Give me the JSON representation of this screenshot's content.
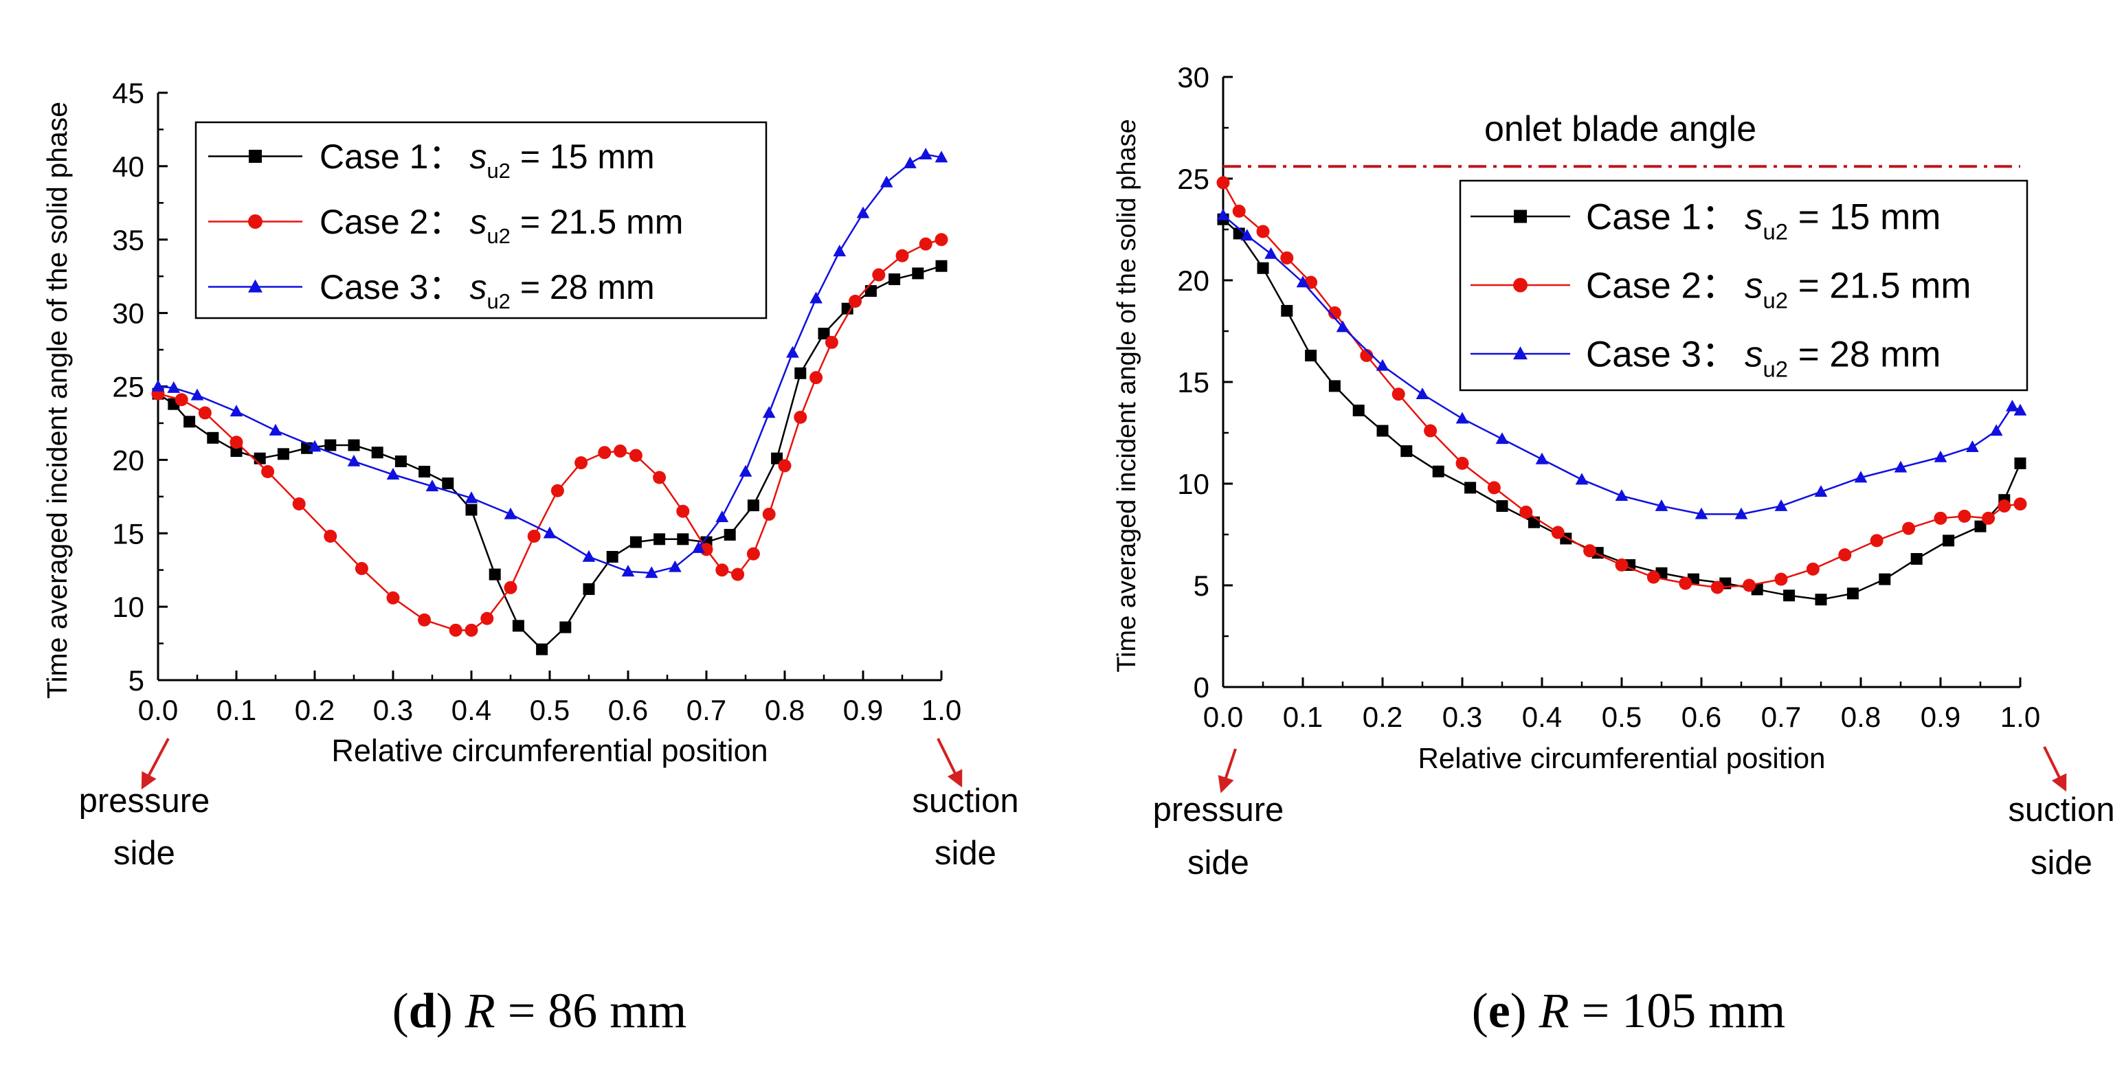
{
  "colors": {
    "case1": "#000000",
    "case2": "#e8120c",
    "case3": "#1010e0",
    "arrow": "#d42020",
    "blade_line": "#c0141c"
  },
  "chart_data": [
    {
      "type": "line",
      "panel_label": "d",
      "caption_var": "R",
      "caption_value": "= 86 mm",
      "xlabel": "Relative circumferential position",
      "ylabel": "Time averaged incident angle of the solid phase",
      "xlim": [
        0.0,
        1.0
      ],
      "ylim": [
        5,
        45
      ],
      "xticks": [
        "0.0",
        "0.1",
        "0.2",
        "0.3",
        "0.4",
        "0.5",
        "0.6",
        "0.7",
        "0.8",
        "0.9",
        "1.0"
      ],
      "yticks": [
        "5",
        "10",
        "15",
        "20",
        "25",
        "30",
        "35",
        "40",
        "45"
      ],
      "legend_position": "top-left",
      "annotations": {
        "left_line1": "pressure",
        "left_line2": "side",
        "right_line1": "suction",
        "right_line2": "side"
      },
      "series": [
        {
          "name": "Case 1：",
          "s_var": "s",
          "s_sub": "u2",
          "s_value": "= 15 mm",
          "marker": "square",
          "x": [
            0.0,
            0.02,
            0.04,
            0.07,
            0.1,
            0.13,
            0.16,
            0.19,
            0.22,
            0.25,
            0.28,
            0.31,
            0.34,
            0.37,
            0.4,
            0.43,
            0.46,
            0.49,
            0.52,
            0.55,
            0.58,
            0.61,
            0.64,
            0.67,
            0.7,
            0.73,
            0.76,
            0.79,
            0.82,
            0.85,
            0.88,
            0.91,
            0.94,
            0.97,
            1.0
          ],
          "y": [
            24.5,
            23.8,
            22.6,
            21.5,
            20.6,
            20.1,
            20.4,
            20.8,
            21.0,
            21.0,
            20.5,
            19.9,
            19.2,
            18.4,
            16.6,
            12.2,
            8.7,
            7.1,
            8.6,
            11.2,
            13.4,
            14.4,
            14.6,
            14.6,
            14.4,
            14.9,
            16.9,
            20.1,
            25.9,
            28.6,
            30.3,
            31.5,
            32.3,
            32.7,
            33.2
          ]
        },
        {
          "name": "Case 2：",
          "s_var": "s",
          "s_sub": "u2",
          "s_value": "= 21.5 mm",
          "marker": "circle",
          "x": [
            0.0,
            0.03,
            0.06,
            0.1,
            0.14,
            0.18,
            0.22,
            0.26,
            0.3,
            0.34,
            0.38,
            0.4,
            0.42,
            0.45,
            0.48,
            0.51,
            0.54,
            0.57,
            0.59,
            0.61,
            0.64,
            0.67,
            0.7,
            0.72,
            0.74,
            0.76,
            0.78,
            0.8,
            0.82,
            0.84,
            0.86,
            0.89,
            0.92,
            0.95,
            0.98,
            1.0
          ],
          "y": [
            24.5,
            24.1,
            23.2,
            21.2,
            19.2,
            17.0,
            14.8,
            12.6,
            10.6,
            9.1,
            8.4,
            8.4,
            9.2,
            11.3,
            14.8,
            17.9,
            19.8,
            20.5,
            20.6,
            20.3,
            18.8,
            16.5,
            13.9,
            12.5,
            12.2,
            13.6,
            16.3,
            19.6,
            22.9,
            25.6,
            28.0,
            30.8,
            32.6,
            33.9,
            34.7,
            35.0
          ]
        },
        {
          "name": "Case 3：",
          "s_var": "s",
          "s_sub": "u2",
          "s_value": "= 28 mm",
          "marker": "triangle",
          "x": [
            0.0,
            0.02,
            0.05,
            0.1,
            0.15,
            0.2,
            0.25,
            0.3,
            0.35,
            0.4,
            0.45,
            0.5,
            0.55,
            0.6,
            0.63,
            0.66,
            0.69,
            0.72,
            0.75,
            0.78,
            0.81,
            0.84,
            0.87,
            0.9,
            0.93,
            0.96,
            0.98,
            1.0
          ],
          "y": [
            25.0,
            24.9,
            24.4,
            23.3,
            22.0,
            20.9,
            19.9,
            19.0,
            18.2,
            17.4,
            16.3,
            15.0,
            13.4,
            12.4,
            12.3,
            12.7,
            14.0,
            16.1,
            19.2,
            23.2,
            27.3,
            31.0,
            34.2,
            36.8,
            38.9,
            40.2,
            40.8,
            40.6
          ]
        }
      ]
    },
    {
      "type": "line",
      "panel_label": "e",
      "caption_var": "R",
      "caption_value": "= 105 mm",
      "xlabel": "Relative circumferential position",
      "ylabel": "Time averaged incident angle of the solid phase",
      "xlim": [
        0.0,
        1.0
      ],
      "ylim": [
        0,
        30
      ],
      "xticks": [
        "0.0",
        "0.1",
        "0.2",
        "0.3",
        "0.4",
        "0.5",
        "0.6",
        "0.7",
        "0.8",
        "0.9",
        "1.0"
      ],
      "yticks": [
        "0",
        "5",
        "10",
        "15",
        "20",
        "25",
        "30"
      ],
      "legend_position": "top-right",
      "reference_line": {
        "label": "onlet blade angle",
        "y": 25.6
      },
      "annotations": {
        "left_line1": "pressure",
        "left_line2": "side",
        "right_line1": "suction",
        "right_line2": "side"
      },
      "series": [
        {
          "name": "Case 1：",
          "s_var": "s",
          "s_sub": "u2",
          "s_value": "= 15 mm",
          "marker": "square",
          "x": [
            0.0,
            0.02,
            0.05,
            0.08,
            0.11,
            0.14,
            0.17,
            0.2,
            0.23,
            0.27,
            0.31,
            0.35,
            0.39,
            0.43,
            0.47,
            0.51,
            0.55,
            0.59,
            0.63,
            0.67,
            0.71,
            0.75,
            0.79,
            0.83,
            0.87,
            0.91,
            0.95,
            0.98,
            1.0
          ],
          "y": [
            23.0,
            22.3,
            20.6,
            18.5,
            16.3,
            14.8,
            13.6,
            12.6,
            11.6,
            10.6,
            9.8,
            8.9,
            8.1,
            7.3,
            6.6,
            6.0,
            5.6,
            5.3,
            5.1,
            4.8,
            4.5,
            4.3,
            4.6,
            5.3,
            6.3,
            7.2,
            7.9,
            9.2,
            11.0
          ]
        },
        {
          "name": "Case 2：",
          "s_var": "s",
          "s_sub": "u2",
          "s_value": "= 21.5 mm",
          "marker": "circle",
          "x": [
            0.0,
            0.02,
            0.05,
            0.08,
            0.11,
            0.14,
            0.18,
            0.22,
            0.26,
            0.3,
            0.34,
            0.38,
            0.42,
            0.46,
            0.5,
            0.54,
            0.58,
            0.62,
            0.66,
            0.7,
            0.74,
            0.78,
            0.82,
            0.86,
            0.9,
            0.93,
            0.96,
            0.98,
            1.0
          ],
          "y": [
            24.8,
            23.4,
            22.4,
            21.1,
            19.9,
            18.4,
            16.3,
            14.4,
            12.6,
            11.0,
            9.8,
            8.6,
            7.6,
            6.7,
            6.0,
            5.4,
            5.1,
            4.9,
            5.0,
            5.3,
            5.8,
            6.5,
            7.2,
            7.8,
            8.3,
            8.4,
            8.3,
            8.9,
            9.0
          ]
        },
        {
          "name": "Case 3：",
          "s_var": "s",
          "s_sub": "u2",
          "s_value": "= 28 mm",
          "marker": "triangle",
          "x": [
            0.0,
            0.03,
            0.06,
            0.1,
            0.15,
            0.2,
            0.25,
            0.3,
            0.35,
            0.4,
            0.45,
            0.5,
            0.55,
            0.6,
            0.65,
            0.7,
            0.75,
            0.8,
            0.85,
            0.9,
            0.94,
            0.97,
            0.99,
            1.0
          ],
          "y": [
            23.2,
            22.2,
            21.3,
            19.9,
            17.7,
            15.8,
            14.4,
            13.2,
            12.2,
            11.2,
            10.2,
            9.4,
            8.9,
            8.5,
            8.5,
            8.9,
            9.6,
            10.3,
            10.8,
            11.3,
            11.8,
            12.6,
            13.8,
            13.6
          ]
        }
      ]
    }
  ]
}
